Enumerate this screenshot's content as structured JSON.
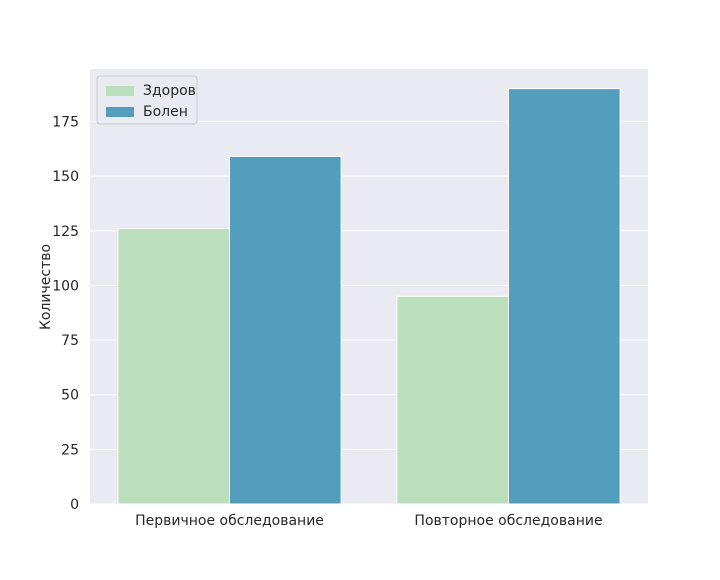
{
  "chart_data": {
    "type": "bar",
    "title": "",
    "xlabel": "",
    "ylabel": "Количество",
    "categories": [
      "Первичное обследование",
      "Повторное обследование"
    ],
    "series": [
      {
        "name": "Здоров",
        "values": [
          126,
          95
        ],
        "color": "#bbdfbc"
      },
      {
        "name": "Болен",
        "values": [
          159,
          190
        ],
        "color": "#539ebd"
      }
    ],
    "ylim": [
      0,
      199
    ],
    "yticks": [
      0,
      25,
      50,
      75,
      100,
      125,
      150,
      175
    ],
    "grid": "y-major-white",
    "legend_position": "top-left",
    "plot_background": "#eaeaf2"
  }
}
